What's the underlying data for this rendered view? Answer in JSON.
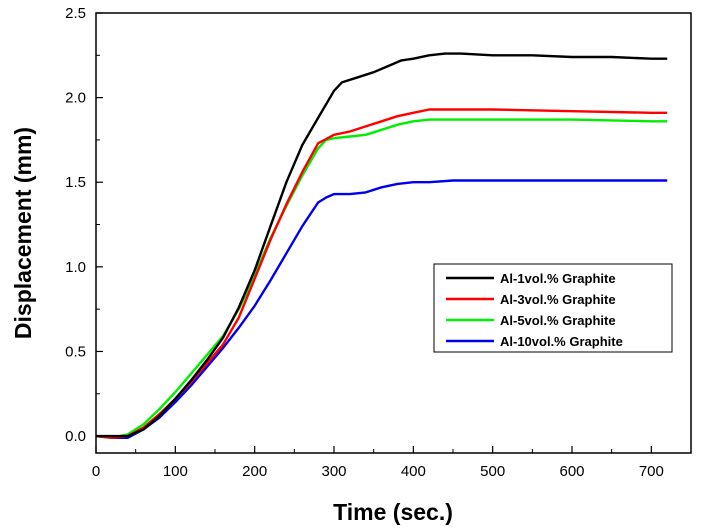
{
  "chart_data": {
    "type": "line",
    "xlabel": "Time (sec.)",
    "ylabel": "Displacement (mm)",
    "xlim": [
      0,
      750
    ],
    "ylim": [
      -0.1,
      2.5
    ],
    "x_ticks": [
      0,
      100,
      200,
      300,
      400,
      500,
      600,
      700
    ],
    "y_ticks": [
      0.0,
      0.5,
      1.0,
      1.5,
      2.0,
      2.5
    ],
    "x_tick_labels": [
      "0",
      "100",
      "200",
      "300",
      "400",
      "500",
      "600",
      "700"
    ],
    "y_tick_labels": [
      "0.0",
      "0.5",
      "1.0",
      "1.5",
      "2.0",
      "2.5"
    ],
    "grid": false,
    "legend_position": "right",
    "series": [
      {
        "name": "Al-1vol.% Graphite",
        "color": "#000000",
        "points": [
          [
            0,
            0
          ],
          [
            20,
            0
          ],
          [
            40,
            0
          ],
          [
            60,
            0.04
          ],
          [
            80,
            0.12
          ],
          [
            100,
            0.22
          ],
          [
            120,
            0.33
          ],
          [
            140,
            0.45
          ],
          [
            160,
            0.58
          ],
          [
            180,
            0.76
          ],
          [
            200,
            0.98
          ],
          [
            220,
            1.24
          ],
          [
            240,
            1.5
          ],
          [
            260,
            1.72
          ],
          [
            280,
            1.88
          ],
          [
            300,
            2.04
          ],
          [
            310,
            2.09
          ],
          [
            330,
            2.12
          ],
          [
            350,
            2.15
          ],
          [
            370,
            2.19
          ],
          [
            385,
            2.22
          ],
          [
            400,
            2.23
          ],
          [
            420,
            2.25
          ],
          [
            440,
            2.26
          ],
          [
            460,
            2.26
          ],
          [
            500,
            2.25
          ],
          [
            550,
            2.25
          ],
          [
            600,
            2.24
          ],
          [
            650,
            2.24
          ],
          [
            700,
            2.23
          ],
          [
            720,
            2.23
          ]
        ]
      },
      {
        "name": "Al-3vol.% Graphite",
        "color": "#ff0000",
        "points": [
          [
            0,
            0
          ],
          [
            20,
            -0.01
          ],
          [
            40,
            0
          ],
          [
            60,
            0.05
          ],
          [
            80,
            0.13
          ],
          [
            100,
            0.22
          ],
          [
            120,
            0.32
          ],
          [
            140,
            0.43
          ],
          [
            160,
            0.54
          ],
          [
            180,
            0.7
          ],
          [
            200,
            0.93
          ],
          [
            220,
            1.16
          ],
          [
            240,
            1.37
          ],
          [
            260,
            1.56
          ],
          [
            280,
            1.73
          ],
          [
            300,
            1.78
          ],
          [
            320,
            1.8
          ],
          [
            340,
            1.83
          ],
          [
            360,
            1.86
          ],
          [
            380,
            1.89
          ],
          [
            400,
            1.91
          ],
          [
            420,
            1.93
          ],
          [
            450,
            1.93
          ],
          [
            500,
            1.93
          ],
          [
            600,
            1.92
          ],
          [
            700,
            1.91
          ],
          [
            720,
            1.91
          ]
        ]
      },
      {
        "name": "Al-5vol.% Graphite",
        "color": "#00ee00",
        "points": [
          [
            0,
            0
          ],
          [
            20,
            -0.01
          ],
          [
            40,
            0.01
          ],
          [
            60,
            0.07
          ],
          [
            80,
            0.16
          ],
          [
            100,
            0.26
          ],
          [
            120,
            0.37
          ],
          [
            140,
            0.48
          ],
          [
            160,
            0.59
          ],
          [
            180,
            0.75
          ],
          [
            200,
            0.95
          ],
          [
            220,
            1.17
          ],
          [
            240,
            1.36
          ],
          [
            260,
            1.54
          ],
          [
            280,
            1.7
          ],
          [
            290,
            1.75
          ],
          [
            300,
            1.76
          ],
          [
            320,
            1.77
          ],
          [
            340,
            1.78
          ],
          [
            360,
            1.81
          ],
          [
            380,
            1.84
          ],
          [
            400,
            1.86
          ],
          [
            420,
            1.87
          ],
          [
            500,
            1.87
          ],
          [
            600,
            1.87
          ],
          [
            700,
            1.86
          ],
          [
            720,
            1.86
          ]
        ]
      },
      {
        "name": "Al-10vol.% Graphite",
        "color": "#0000ee",
        "points": [
          [
            0,
            0
          ],
          [
            20,
            -0.01
          ],
          [
            40,
            -0.01
          ],
          [
            60,
            0.04
          ],
          [
            80,
            0.11
          ],
          [
            100,
            0.2
          ],
          [
            120,
            0.3
          ],
          [
            140,
            0.41
          ],
          [
            160,
            0.52
          ],
          [
            180,
            0.64
          ],
          [
            200,
            0.77
          ],
          [
            220,
            0.92
          ],
          [
            240,
            1.08
          ],
          [
            260,
            1.24
          ],
          [
            280,
            1.38
          ],
          [
            290,
            1.41
          ],
          [
            300,
            1.43
          ],
          [
            320,
            1.43
          ],
          [
            340,
            1.44
          ],
          [
            360,
            1.47
          ],
          [
            380,
            1.49
          ],
          [
            400,
            1.5
          ],
          [
            420,
            1.5
          ],
          [
            450,
            1.51
          ],
          [
            500,
            1.51
          ],
          [
            600,
            1.51
          ],
          [
            700,
            1.51
          ],
          [
            720,
            1.51
          ]
        ]
      }
    ]
  }
}
